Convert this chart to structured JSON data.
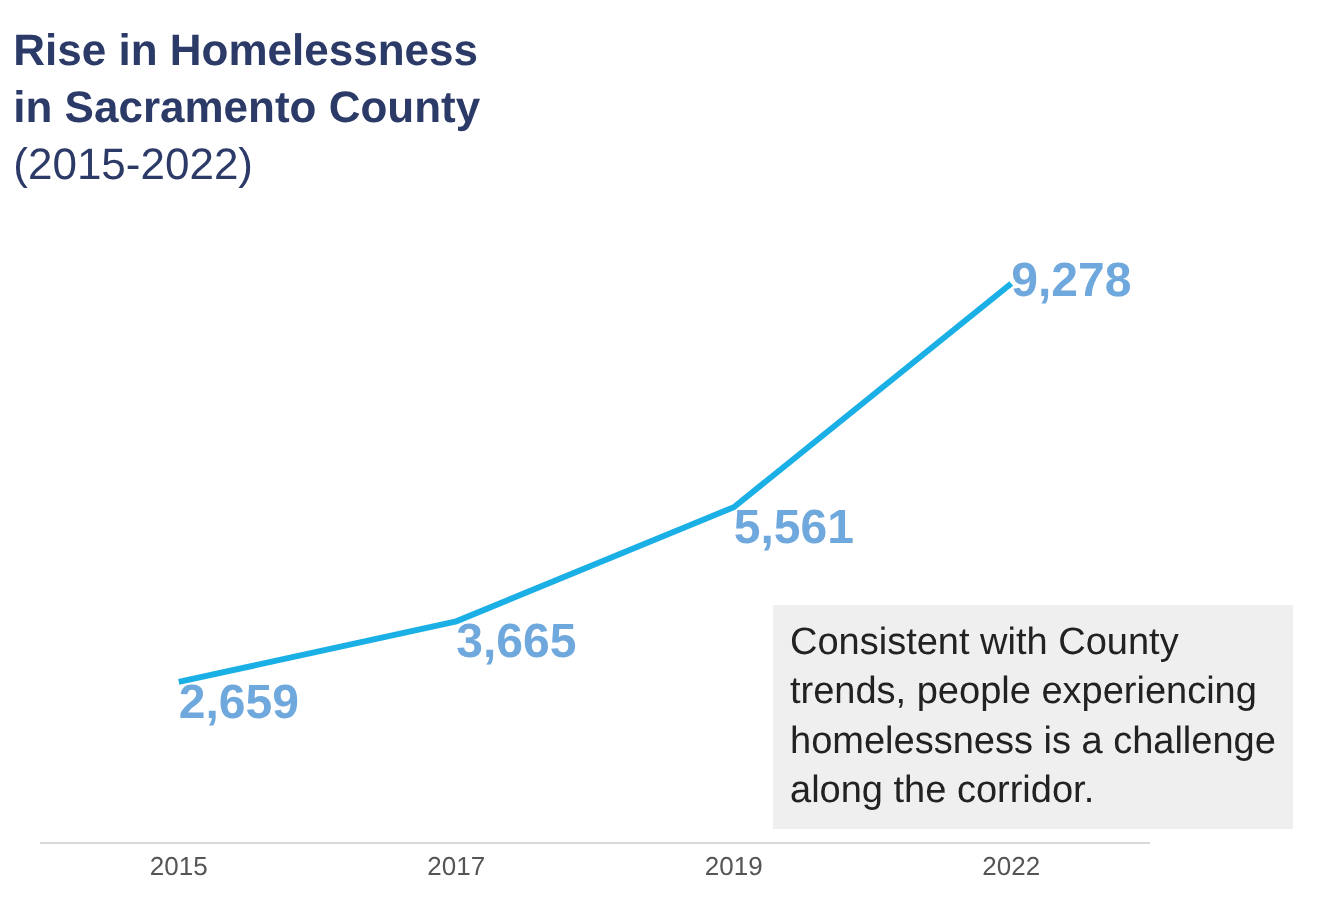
{
  "chart_data": {
    "type": "line",
    "title": "Rise in Homelessness in Sacramento County",
    "subtitle": "(2015-2022)",
    "categories": [
      "2015",
      "2017",
      "2019",
      "2022"
    ],
    "series": [
      {
        "color": "#1ab0e6",
        "values": [
          2659,
          3665,
          5561,
          9278
        ],
        "value_labels": [
          "2,659",
          "3,665",
          "5,561",
          "9,278"
        ]
      }
    ],
    "line_style": "solid",
    "annotations": [
      "Consistent with County trends, people experiencing homelessness is a challenge along the corridor."
    ]
  }
}
